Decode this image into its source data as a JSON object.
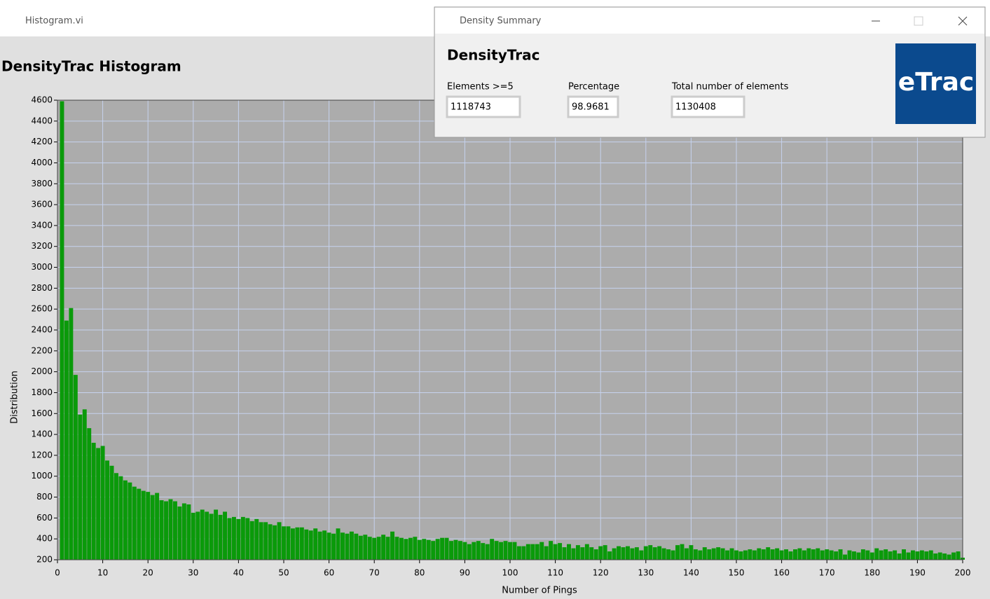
{
  "main_window": {
    "title": "Histogram.vi"
  },
  "dialog": {
    "title": "Density Summary",
    "heading": "DensityTrac",
    "fields": [
      {
        "label": "Elements >=5",
        "value": "1118743"
      },
      {
        "label": "Percentage",
        "value": "98.9681"
      },
      {
        "label": "Total number of elements",
        "value": "1130408"
      }
    ],
    "logo": "eTrac"
  },
  "chart_data": {
    "type": "bar",
    "title": "DensityTrac Histogram",
    "x_label": "Number of Pings",
    "y_label": "Distribution",
    "color": "#0a9a0a",
    "grid": true,
    "x": [
      1,
      2,
      3,
      4,
      5,
      6,
      7,
      8,
      9,
      10,
      11,
      12,
      13,
      14,
      15,
      16,
      17,
      18,
      19,
      20,
      21,
      22,
      23,
      24,
      25,
      26,
      27,
      28,
      29,
      30,
      31,
      32,
      33,
      34,
      35,
      36,
      37,
      38,
      39,
      40,
      41,
      42,
      43,
      44,
      45,
      46,
      47,
      48,
      49,
      50,
      51,
      52,
      53,
      54,
      55,
      56,
      57,
      58,
      59,
      60,
      61,
      62,
      63,
      64,
      65,
      66,
      67,
      68,
      69,
      70,
      71,
      72,
      73,
      74,
      75,
      76,
      77,
      78,
      79,
      80,
      81,
      82,
      83,
      84,
      85,
      86,
      87,
      88,
      89,
      90,
      91,
      92,
      93,
      94,
      95,
      96,
      97,
      98,
      99,
      100,
      101,
      102,
      103,
      104,
      105,
      106,
      107,
      108,
      109,
      110,
      111,
      112,
      113,
      114,
      115,
      116,
      117,
      118,
      119,
      120,
      121,
      122,
      123,
      124,
      125,
      126,
      127,
      128,
      129,
      130,
      131,
      132,
      133,
      134,
      135,
      136,
      137,
      138,
      139,
      140,
      141,
      142,
      143,
      144,
      145,
      146,
      147,
      148,
      149,
      150,
      151,
      152,
      153,
      154,
      155,
      156,
      157,
      158,
      159,
      160,
      161,
      162,
      163,
      164,
      165,
      166,
      167,
      168,
      169,
      170,
      171,
      172,
      173,
      174,
      175,
      176,
      177,
      178,
      179,
      180,
      181,
      182,
      183,
      184,
      185,
      186,
      187,
      188,
      189,
      190,
      191,
      192,
      193,
      194,
      195,
      196,
      197,
      198,
      199,
      200
    ],
    "values": [
      4590,
      2490,
      2610,
      1970,
      1590,
      1640,
      1460,
      1320,
      1270,
      1290,
      1150,
      1100,
      1030,
      1000,
      960,
      940,
      900,
      880,
      860,
      850,
      820,
      840,
      770,
      760,
      780,
      760,
      710,
      740,
      730,
      650,
      660,
      680,
      660,
      640,
      680,
      630,
      660,
      600,
      610,
      590,
      610,
      600,
      570,
      590,
      560,
      560,
      540,
      530,
      560,
      520,
      520,
      500,
      510,
      510,
      490,
      480,
      500,
      470,
      480,
      460,
      450,
      500,
      460,
      450,
      470,
      450,
      430,
      440,
      420,
      410,
      420,
      440,
      420,
      470,
      420,
      410,
      400,
      410,
      420,
      390,
      400,
      390,
      380,
      400,
      410,
      410,
      380,
      390,
      380,
      370,
      350,
      370,
      380,
      360,
      350,
      400,
      380,
      370,
      380,
      370,
      370,
      330,
      330,
      350,
      350,
      350,
      370,
      330,
      380,
      350,
      360,
      320,
      350,
      310,
      340,
      320,
      350,
      320,
      300,
      330,
      340,
      280,
      310,
      330,
      320,
      330,
      310,
      320,
      290,
      330,
      340,
      320,
      330,
      310,
      300,
      290,
      340,
      350,
      310,
      340,
      300,
      290,
      320,
      300,
      310,
      320,
      310,
      290,
      310,
      290,
      280,
      290,
      300,
      290,
      310,
      300,
      320,
      300,
      310,
      290,
      300,
      280,
      300,
      310,
      290,
      310,
      300,
      310,
      290,
      300,
      290,
      280,
      300,
      250,
      290,
      280,
      270,
      300,
      290,
      270,
      310,
      290,
      300,
      280,
      290,
      260,
      300,
      270,
      290,
      280,
      290,
      280,
      290,
      260,
      270,
      260,
      250,
      270,
      280,
      220
    ],
    "xlim": [
      0,
      200
    ],
    "xticks": [
      0,
      10,
      20,
      30,
      40,
      50,
      60,
      70,
      80,
      90,
      100,
      110,
      120,
      130,
      140,
      150,
      160,
      170,
      180,
      190,
      200
    ],
    "ylim": [
      200,
      4600
    ],
    "yticks": [
      200,
      400,
      600,
      800,
      1000,
      1200,
      1400,
      1600,
      1800,
      2000,
      2200,
      2400,
      2600,
      2800,
      3000,
      3200,
      3400,
      3600,
      3800,
      4000,
      4200,
      4400,
      4600
    ]
  }
}
